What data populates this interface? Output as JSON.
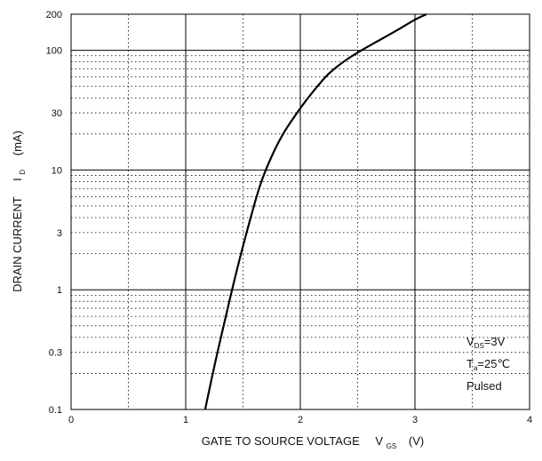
{
  "chart_data": {
    "type": "line",
    "xlabel": {
      "main": "GATE TO SOURCE VOLTAGE",
      "symbol": "V",
      "subscript": "GS",
      "unit": "(V)"
    },
    "ylabel": {
      "main": "DRAIN CURRENT",
      "symbol": "I",
      "subscript": "D",
      "unit": "(mA)"
    },
    "xlim": [
      0,
      4
    ],
    "ylim": [
      0.1,
      200
    ],
    "yscale": "log",
    "x_ticks": [
      0,
      1,
      2,
      3,
      4
    ],
    "x_tick_labels": [
      "0",
      "1",
      "2",
      "3",
      "4"
    ],
    "y_ticks": [
      0.1,
      0.3,
      1,
      3,
      10,
      30,
      100,
      200
    ],
    "y_tick_labels": [
      "0.1",
      "0.3",
      "1",
      "3",
      "10",
      "30",
      "100",
      "200"
    ],
    "grid": true,
    "annotation": [
      {
        "symbol": "V",
        "subscript": "DS",
        "rest": "=3V"
      },
      {
        "symbol": "T",
        "subscript": "a",
        "rest": "=25℃"
      },
      {
        "symbol": "Pulsed",
        "subscript": "",
        "rest": ""
      }
    ],
    "series": [
      {
        "x": [
          1.17,
          1.25,
          1.35,
          1.45,
          1.55,
          1.65,
          1.75,
          1.85,
          1.95,
          2.05,
          2.15,
          2.25,
          2.4,
          2.55,
          2.7,
          2.85,
          3.0,
          3.1
        ],
        "y": [
          0.1,
          0.23,
          0.6,
          1.5,
          3.5,
          7.5,
          13,
          20,
          28,
          38,
          50,
          64,
          83,
          102,
          123,
          148,
          180,
          200
        ]
      }
    ]
  }
}
